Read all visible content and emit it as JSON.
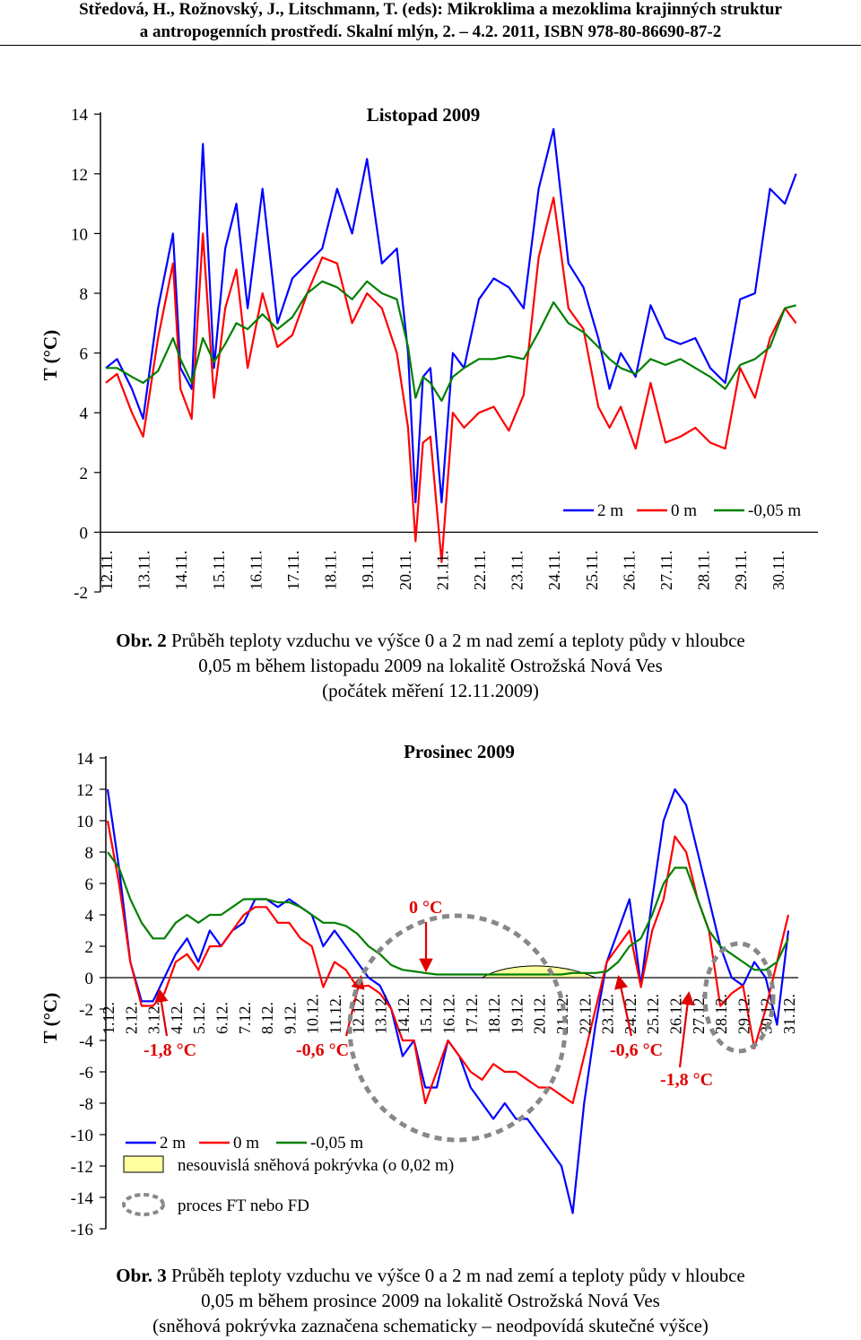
{
  "header": {
    "line1": "Středová, H., Rožnovský, J., Litschmann, T. (eds): Mikroklima a mezoklima krajinných struktur",
    "line2": "a antropogenních prostředí. Skalní mlýn, 2. – 4.2. 2011, ISBN 978-80-86690-87-2"
  },
  "figure2": {
    "label": "Obr. 2",
    "caption_line1": " Průběh teploty vzduchu ve výšce 0 a 2 m nad zemí a teploty půdy v hloubce",
    "caption_line2": "0,05 m během listopadu 2009 na lokalitě Ostrožská Nová Ves",
    "caption_line3": "(počátek měření 12.11.2009)"
  },
  "figure3": {
    "label": "Obr. 3",
    "caption_line1": " Průběh teploty vzduchu ve výšce 0 a 2 m nad zemí a teploty půdy v hloubce",
    "caption_line2": "0,05 m během prosince 2009 na lokalitě Ostrožská Nová Ves",
    "caption_line3": "(sněhová pokrývka zaznačena schematicky – neodpovídá skutečné výšce)"
  },
  "chart_data": [
    {
      "type": "line",
      "title": "Listopad 2009",
      "ylabel": "T (°C)",
      "ylim": [
        -2,
        14
      ],
      "yticks": [
        "-2",
        "0",
        "2",
        "4",
        "6",
        "8",
        "10",
        "12",
        "14"
      ],
      "categories": [
        "12.11.",
        "13.11.",
        "14.11.",
        "15.11.",
        "16.11.",
        "17.11.",
        "18.11.",
        "19.11.",
        "20.11.",
        "21.11.",
        "22.11.",
        "23.11.",
        "24.11.",
        "25.11.",
        "26.11.",
        "27.11.",
        "28.11.",
        "29.11.",
        "30.11."
      ],
      "legend_position": "bottom-right",
      "series": [
        {
          "name": "2 m",
          "color": "#0000ff",
          "x": [
            0,
            0.3,
            0.7,
            1.0,
            1.4,
            1.8,
            2.0,
            2.3,
            2.6,
            2.9,
            3.2,
            3.5,
            3.8,
            4.2,
            4.6,
            5.0,
            5.4,
            5.8,
            6.2,
            6.6,
            7.0,
            7.4,
            7.8,
            8.1,
            8.3,
            8.5,
            8.7,
            9.0,
            9.3,
            9.6,
            10.0,
            10.4,
            10.8,
            11.2,
            11.6,
            12.0,
            12.4,
            12.8,
            13.2,
            13.5,
            13.8,
            14.2,
            14.6,
            15.0,
            15.4,
            15.8,
            16.2,
            16.6,
            17.0,
            17.4,
            17.8,
            18.2,
            18.5
          ],
          "y": [
            5.5,
            5.8,
            4.8,
            3.8,
            7.5,
            10,
            5.5,
            4.8,
            13,
            5.5,
            9.5,
            11,
            7.5,
            11.5,
            7,
            8.5,
            9,
            9.5,
            11.5,
            10,
            12.5,
            9,
            9.5,
            6,
            1,
            5.2,
            5.5,
            1,
            6,
            5.5,
            7.8,
            8.5,
            8.2,
            7.5,
            11.5,
            13.5,
            9,
            8.2,
            6.5,
            4.8,
            6,
            5.2,
            7.6,
            6.5,
            6.3,
            6.5,
            5.5,
            5,
            7.8,
            8,
            11.5,
            11,
            12
          ]
        },
        {
          "name": "0 m",
          "color": "#ff0000",
          "x": [
            0,
            0.3,
            0.7,
            1.0,
            1.4,
            1.8,
            2.0,
            2.3,
            2.6,
            2.9,
            3.2,
            3.5,
            3.8,
            4.2,
            4.6,
            5.0,
            5.4,
            5.8,
            6.2,
            6.6,
            7.0,
            7.4,
            7.8,
            8.1,
            8.3,
            8.5,
            8.7,
            9.0,
            9.3,
            9.6,
            10.0,
            10.4,
            10.8,
            11.2,
            11.6,
            12.0,
            12.4,
            12.8,
            13.2,
            13.5,
            13.8,
            14.2,
            14.6,
            15.0,
            15.4,
            15.8,
            16.2,
            16.6,
            17.0,
            17.4,
            17.8,
            18.2,
            18.5
          ],
          "y": [
            5,
            5.3,
            4,
            3.2,
            6.5,
            9,
            4.8,
            3.8,
            10,
            4.5,
            7.5,
            8.8,
            5.5,
            8,
            6.2,
            6.6,
            8,
            9.2,
            9,
            7,
            8,
            7.5,
            6,
            3.5,
            -0.3,
            3,
            3.2,
            -1,
            4,
            3.5,
            4,
            4.2,
            3.4,
            4.6,
            9.2,
            11.2,
            7.5,
            6.8,
            4.2,
            3.5,
            4.2,
            2.8,
            5,
            3,
            3.2,
            3.5,
            3,
            2.8,
            5.5,
            4.5,
            6.5,
            7.5,
            7
          ]
        },
        {
          "name": "-0,05 m",
          "color": "#008000",
          "x": [
            0,
            0.3,
            0.7,
            1.0,
            1.4,
            1.8,
            2.0,
            2.3,
            2.6,
            2.9,
            3.2,
            3.5,
            3.8,
            4.2,
            4.6,
            5.0,
            5.4,
            5.8,
            6.2,
            6.6,
            7.0,
            7.4,
            7.8,
            8.1,
            8.3,
            8.5,
            8.7,
            9.0,
            9.3,
            9.6,
            10.0,
            10.4,
            10.8,
            11.2,
            11.6,
            12.0,
            12.4,
            12.8,
            13.2,
            13.5,
            13.8,
            14.2,
            14.6,
            15.0,
            15.4,
            15.8,
            16.2,
            16.6,
            17.0,
            17.4,
            17.8,
            18.2,
            18.5
          ],
          "y": [
            5.5,
            5.5,
            5.2,
            5,
            5.4,
            6.5,
            5.8,
            5,
            6.5,
            5.7,
            6.3,
            7,
            6.8,
            7.3,
            6.8,
            7.2,
            8,
            8.4,
            8.2,
            7.8,
            8.4,
            8,
            7.8,
            6.2,
            4.5,
            5.2,
            5,
            4.4,
            5.2,
            5.5,
            5.8,
            5.8,
            5.9,
            5.8,
            6.7,
            7.7,
            7,
            6.7,
            6.2,
            5.8,
            5.5,
            5.3,
            5.8,
            5.6,
            5.8,
            5.5,
            5.2,
            4.8,
            5.6,
            5.8,
            6.2,
            7.5,
            7.6
          ]
        }
      ]
    },
    {
      "type": "line",
      "title": "Prosinec 2009",
      "ylabel": "T (°C)",
      "ylim": [
        -16,
        14
      ],
      "yticks": [
        "-16",
        "-14",
        "-12",
        "-10",
        "-8",
        "-6",
        "-4",
        "-2",
        "0",
        "2",
        "4",
        "6",
        "8",
        "10",
        "12",
        "14"
      ],
      "categories": [
        "1.12.",
        "2.12.",
        "3.12.",
        "4.12.",
        "5.12.",
        "6.12.",
        "7.12.",
        "8.12.",
        "9.12.",
        "10.12.",
        "11.12.",
        "12.12.",
        "13.12.",
        "14.12.",
        "15.12.",
        "16.12.",
        "17.12.",
        "18.12.",
        "19.12.",
        "20.12.",
        "21.12.",
        "22.12.",
        "23.12.",
        "24.12.",
        "25.12.",
        "26.12.",
        "27.12.",
        "28.12.",
        "29.12.",
        "30.12.",
        "31.12."
      ],
      "legend_position": "bottom-left",
      "annotations": [
        "-1,8 °C",
        "-0,6 °C",
        "0 °C",
        "-0,6 °C",
        "-1,8 °C"
      ],
      "legend_extra": [
        "nesouvislá sněhová pokrývka (o 0,02 m)",
        "proces FT nebo FD"
      ],
      "snow_cover": {
        "x_start": 16.5,
        "x_end": 21.5,
        "max_y": 1.0
      },
      "series": [
        {
          "name": "2 m",
          "color": "#0000ff",
          "x": [
            0,
            0.5,
            1,
            1.5,
            2,
            2.5,
            3,
            3.5,
            4,
            4.5,
            5,
            5.5,
            6,
            6.5,
            7,
            7.5,
            8,
            8.5,
            9,
            9.5,
            10,
            10.5,
            11,
            11.5,
            12,
            12.5,
            13,
            13.5,
            14,
            14.5,
            15,
            15.5,
            16,
            16.5,
            17,
            17.5,
            18,
            18.5,
            19,
            19.5,
            20,
            20.5,
            21,
            21.5,
            22,
            22.5,
            23,
            23.5,
            24,
            24.5,
            25,
            25.5,
            26,
            26.5,
            27,
            27.5,
            28,
            28.5,
            29,
            29.5,
            30
          ],
          "y": [
            12,
            7,
            1,
            -1.5,
            -1.5,
            0,
            1.5,
            2.5,
            1,
            3,
            2,
            3,
            3.5,
            5,
            5,
            4.5,
            5,
            4.5,
            4,
            2,
            3,
            2,
            1,
            0,
            -0.5,
            -2,
            -5,
            -4,
            -7,
            -7,
            -4,
            -5,
            -7,
            -8,
            -9,
            -8,
            -9,
            -9,
            -10,
            -11,
            -12,
            -15,
            -8,
            -3,
            1,
            3,
            5,
            -0.5,
            5,
            10,
            12,
            11,
            8,
            5,
            2,
            0,
            -0.5,
            1,
            0,
            -3,
            3
          ]
        },
        {
          "name": "0 m",
          "color": "#ff0000",
          "x": [
            0,
            0.5,
            1,
            1.5,
            2,
            2.5,
            3,
            3.5,
            4,
            4.5,
            5,
            5.5,
            6,
            6.5,
            7,
            7.5,
            8,
            8.5,
            9,
            9.5,
            10,
            10.5,
            11,
            11.5,
            12,
            12.5,
            13,
            13.5,
            14,
            14.5,
            15,
            15.5,
            16,
            16.5,
            17,
            17.5,
            18,
            18.5,
            19,
            19.5,
            20,
            20.5,
            21,
            21.5,
            22,
            22.5,
            23,
            23.5,
            24,
            24.5,
            25,
            25.5,
            26,
            26.5,
            27,
            27.5,
            28,
            28.5,
            29,
            29.5,
            30
          ],
          "y": [
            10,
            6,
            1,
            -1.8,
            -1.8,
            -1,
            1,
            1.5,
            0.5,
            2,
            2,
            3,
            4,
            4.5,
            4.5,
            3.5,
            3.5,
            2.5,
            2,
            -0.6,
            1,
            0.5,
            -0.6,
            -0.5,
            -1,
            -2,
            -4,
            -4,
            -8,
            -6,
            -4,
            -5,
            -6,
            -6.5,
            -5.5,
            -6,
            -6,
            -6.5,
            -7,
            -7,
            -7.5,
            -8,
            -5,
            -2,
            1,
            2,
            3,
            -0.6,
            3,
            5,
            9,
            8,
            5,
            3,
            -1.8,
            -1,
            -0.5,
            -4.5,
            -2,
            1,
            4
          ]
        },
        {
          "name": "-0,05 m",
          "color": "#008000",
          "x": [
            0,
            0.5,
            1,
            1.5,
            2,
            2.5,
            3,
            3.5,
            4,
            4.5,
            5,
            5.5,
            6,
            6.5,
            7,
            7.5,
            8,
            8.5,
            9,
            9.5,
            10,
            10.5,
            11,
            11.5,
            12,
            12.5,
            13,
            13.5,
            14,
            14.5,
            15,
            15.5,
            16,
            16.5,
            17,
            17.5,
            18,
            18.5,
            19,
            19.5,
            20,
            20.5,
            21,
            21.5,
            22,
            22.5,
            23,
            23.5,
            24,
            24.5,
            25,
            25.5,
            26,
            26.5,
            27,
            27.5,
            28,
            28.5,
            29,
            29.5,
            30
          ],
          "y": [
            8,
            7,
            5,
            3.5,
            2.5,
            2.5,
            3.5,
            4,
            3.5,
            4,
            4,
            4.5,
            5,
            5,
            5,
            4.8,
            4.8,
            4.5,
            4,
            3.5,
            3.5,
            3.3,
            2.8,
            2,
            1.5,
            0.8,
            0.5,
            0.4,
            0.3,
            0.2,
            0.2,
            0.2,
            0.2,
            0.2,
            0.2,
            0.2,
            0.2,
            0.2,
            0.2,
            0.2,
            0.2,
            0.3,
            0.3,
            0.3,
            0.4,
            1,
            2,
            2.5,
            4,
            6,
            7,
            7,
            5,
            3,
            2,
            1.5,
            1,
            0.5,
            0.5,
            1,
            2.5
          ]
        }
      ]
    }
  ]
}
